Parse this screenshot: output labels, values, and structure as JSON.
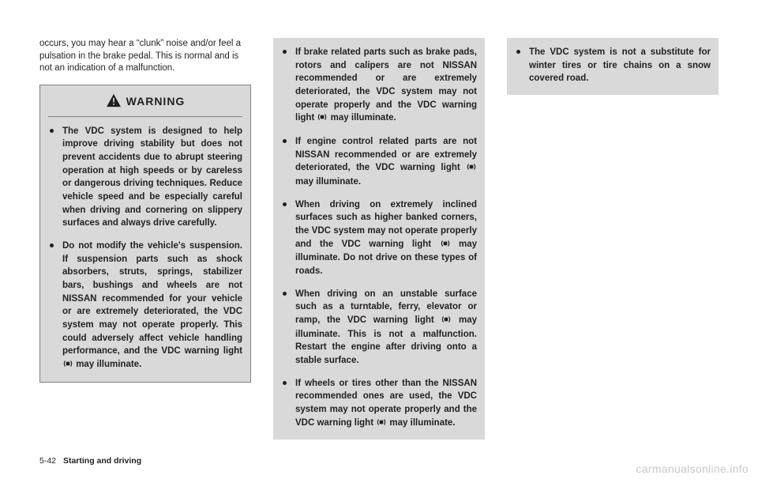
{
  "intro": "occurs, you may hear a “clunk” noise and/or feel a pulsation in the brake pedal. This is normal and is not an indication of a malfunction.",
  "warning_label": "WARNING",
  "col1_bullets": [
    "The VDC system is designed to help improve driving stability but does not prevent accidents due to abrupt steering operation at high speeds or by careless or dangerous driving techniques. Reduce vehicle speed and be especially careful when driving and cornering on slippery surfaces and always drive carefully.",
    "Do not modify the vehicle's suspension. If suspension parts such as shock absorbers, struts, springs, stabilizer bars, bushings and wheels are not NISSAN recommended for your vehicle or are extremely deteriorated, the VDC system may not operate properly. This could adversely affect vehicle handling performance, and the VDC warning light {ICON} may illuminate."
  ],
  "col2_bullets": [
    "If brake related parts such as brake pads, rotors and calipers are not NISSAN recommended or are extremely deteriorated, the VDC system may not operate properly and the VDC warning light {ICON} may illuminate.",
    "If engine control related parts are not NISSAN recommended or are extremely deteriorated, the VDC warning light {ICON} may illuminate.",
    "When driving on extremely inclined surfaces such as higher banked corners, the VDC system may not operate properly and the VDC warning light {ICON} may illuminate. Do not drive on these types of roads.",
    "When driving on an unstable surface such as a turntable, ferry, elevator or ramp, the VDC warning light {ICON} may illuminate. This is not a malfunction. Restart the engine after driving onto a stable surface.",
    "If wheels or tires other than the NISSAN recommended ones are used, the VDC system may not operate properly and the VDC warning light {ICON} may illuminate."
  ],
  "col3_bullets": [
    "The VDC system is not a substitute for winter tires or tire chains on a snow covered road."
  ],
  "footer": {
    "page": "5-42",
    "section": "Starting and driving"
  },
  "watermark": "carmanualsonline.info",
  "colors": {
    "box_bg": "#d9d9d9",
    "box_border": "#808080",
    "text": "#231f20",
    "watermark": "#c8c8c8"
  }
}
